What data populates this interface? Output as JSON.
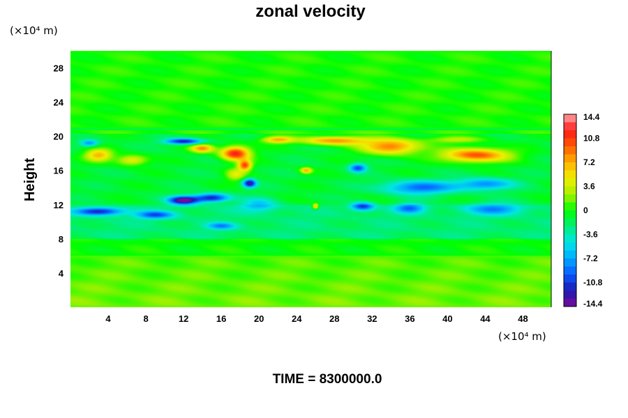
{
  "chart_data": {
    "type": "heatmap",
    "title": "zonal velocity",
    "ylabel": "Height",
    "xlabel": "",
    "x_unit": "(×10⁴ m)",
    "y_unit": "(×10⁴ m)",
    "xlim": [
      0,
      51
    ],
    "ylim": [
      0,
      30
    ],
    "x_ticks": [
      4,
      8,
      12,
      16,
      20,
      24,
      28,
      32,
      36,
      40,
      44,
      48
    ],
    "y_ticks": [
      4,
      8,
      12,
      16,
      20,
      24,
      28
    ],
    "colorbar": {
      "min": -14.4,
      "max": 14.4,
      "tick_labels": [
        "14.4",
        "10.8",
        "7.2",
        "3.6",
        "0",
        "-3.6",
        "-7.2",
        "-10.8",
        "-14.4"
      ],
      "tick_values": [
        14.4,
        10.8,
        7.2,
        3.6,
        0,
        -3.6,
        -7.2,
        -10.8,
        -14.4
      ],
      "colors": [
        "#7a0a9a",
        "#1a1ab0",
        "#0a5aff",
        "#00aaff",
        "#00e6e6",
        "#00ee7a",
        "#00ff00",
        "#a8f000",
        "#f0f000",
        "#ffb000",
        "#ff5a00",
        "#ff1a1a",
        "#ffaaaa"
      ]
    },
    "features": [
      {
        "x": 43,
        "y": 17.8,
        "value": 11,
        "sx": 3.5,
        "sy": 0.8
      },
      {
        "x": 34,
        "y": 18.8,
        "value": 10,
        "sx": 3.0,
        "sy": 0.9
      },
      {
        "x": 28,
        "y": 19.5,
        "value": 9,
        "sx": 3.5,
        "sy": 0.5
      },
      {
        "x": 22,
        "y": 19.6,
        "value": 8,
        "sx": 1.6,
        "sy": 0.4
      },
      {
        "x": 17.5,
        "y": 18.0,
        "value": 13,
        "sx": 1.5,
        "sy": 0.8
      },
      {
        "x": 18.5,
        "y": 16.6,
        "value": 11,
        "sx": 0.7,
        "sy": 0.6
      },
      {
        "x": 14,
        "y": 18.6,
        "value": 9,
        "sx": 1.2,
        "sy": 0.5
      },
      {
        "x": 3,
        "y": 17.8,
        "value": 8,
        "sx": 1.4,
        "sy": 0.7
      },
      {
        "x": 6.5,
        "y": 17.2,
        "value": 6,
        "sx": 1.6,
        "sy": 0.6
      },
      {
        "x": 25,
        "y": 16.0,
        "value": 8,
        "sx": 0.6,
        "sy": 0.35
      },
      {
        "x": 12,
        "y": 19.4,
        "value": -11,
        "sx": 2.0,
        "sy": 0.35
      },
      {
        "x": 12,
        "y": 12.5,
        "value": -14,
        "sx": 1.6,
        "sy": 0.5
      },
      {
        "x": 15,
        "y": 12.8,
        "value": -11,
        "sx": 1.8,
        "sy": 0.5
      },
      {
        "x": 3,
        "y": 11.2,
        "value": -10,
        "sx": 2.5,
        "sy": 0.45
      },
      {
        "x": 9,
        "y": 10.8,
        "value": -8,
        "sx": 2.0,
        "sy": 0.45
      },
      {
        "x": 19,
        "y": 14.5,
        "value": -12,
        "sx": 0.7,
        "sy": 0.5
      },
      {
        "x": 17.5,
        "y": 15.5,
        "value": 5,
        "sx": 1.0,
        "sy": 0.7
      },
      {
        "x": 30.5,
        "y": 16.3,
        "value": -9,
        "sx": 0.9,
        "sy": 0.5
      },
      {
        "x": 37,
        "y": 14.0,
        "value": -8,
        "sx": 4.0,
        "sy": 0.8
      },
      {
        "x": 44,
        "y": 14.4,
        "value": -7,
        "sx": 3.0,
        "sy": 0.7
      },
      {
        "x": 31,
        "y": 11.8,
        "value": -9,
        "sx": 1.2,
        "sy": 0.5
      },
      {
        "x": 36,
        "y": 11.6,
        "value": -7,
        "sx": 1.6,
        "sy": 0.6
      },
      {
        "x": 45,
        "y": 11.5,
        "value": -6,
        "sx": 3.0,
        "sy": 0.7
      },
      {
        "x": 26,
        "y": 11.8,
        "value": 9,
        "sx": 0.3,
        "sy": 0.3
      },
      {
        "x": 16,
        "y": 9.5,
        "value": -6,
        "sx": 1.5,
        "sy": 0.4
      },
      {
        "x": 2,
        "y": 19.2,
        "value": -7,
        "sx": 1.0,
        "sy": 0.4
      },
      {
        "x": 20,
        "y": 12.0,
        "value": -5,
        "sx": 2.0,
        "sy": 0.8
      },
      {
        "x": 41,
        "y": 19.6,
        "value": 4,
        "sx": 3.0,
        "sy": 0.4
      }
    ],
    "time_label": "TIME = 8300000.0"
  }
}
